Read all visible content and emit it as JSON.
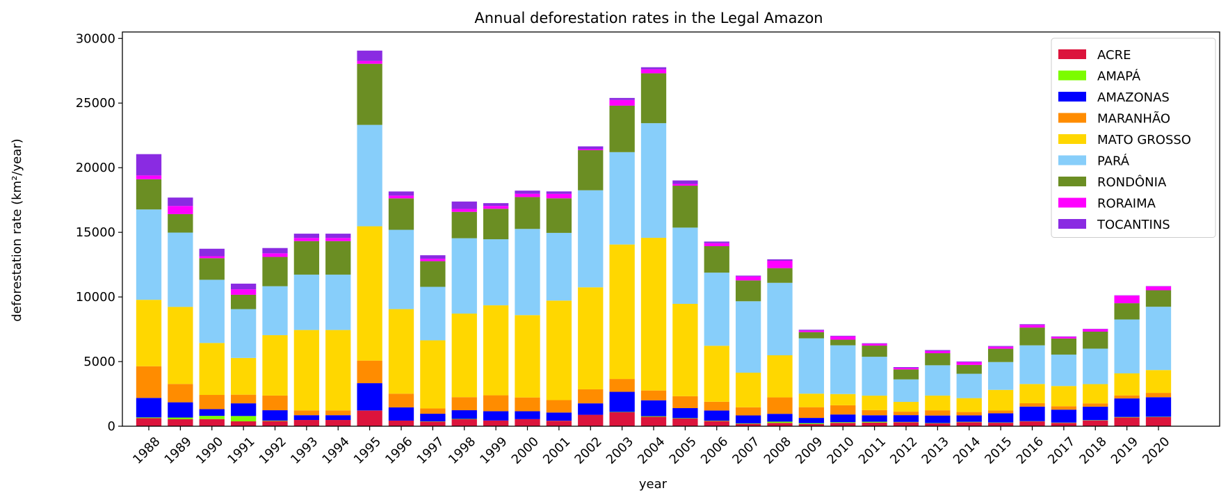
{
  "chart_data": {
    "type": "bar",
    "stacked": true,
    "title": "Annual deforestation rates in the Legal Amazon",
    "xlabel": "year",
    "ylabel": "deforestation rate (km²/year)",
    "ylim": [
      0,
      30500
    ],
    "yticks": [
      0,
      5000,
      10000,
      15000,
      20000,
      25000,
      30000
    ],
    "legend_position": "top-right",
    "grid": false,
    "categories": [
      "1988",
      "1989",
      "1990",
      "1991",
      "1992",
      "1993",
      "1994",
      "1995",
      "1996",
      "1997",
      "1998",
      "1999",
      "2000",
      "2001",
      "2002",
      "2003",
      "2004",
      "2005",
      "2006",
      "2007",
      "2008",
      "2009",
      "2010",
      "2011",
      "2012",
      "2013",
      "2014",
      "2015",
      "2016",
      "2017",
      "2018",
      "2019",
      "2020"
    ],
    "series": [
      {
        "name": "ACRE",
        "color": "#dc143c",
        "values": [
          620,
          540,
          550,
          380,
          400,
          482,
          482,
          1208,
          433,
          358,
          536,
          441,
          547,
          419,
          883,
          1078,
          728,
          592,
          398,
          184,
          254,
          167,
          259,
          280,
          305,
          221,
          309,
          264,
          372,
          257,
          444,
          682,
          706
        ]
      },
      {
        "name": "AMAPÁ",
        "color": "#7cfc00",
        "values": [
          60,
          130,
          250,
          410,
          36,
          0,
          0,
          9,
          0,
          18,
          30,
          0,
          0,
          7,
          0,
          25,
          46,
          33,
          30,
          39,
          100,
          70,
          53,
          66,
          27,
          23,
          31,
          25,
          17,
          24,
          24,
          32,
          24
        ]
      },
      {
        "name": "AMAZONAS",
        "color": "#0000ff",
        "values": [
          1510,
          1180,
          520,
          980,
          799,
          370,
          370,
          2114,
          1023,
          589,
          670,
          720,
          612,
          634,
          885,
          1558,
          1232,
          775,
          788,
          610,
          604,
          405,
          595,
          502,
          523,
          583,
          500,
          712,
          1129,
          1001,
          1045,
          1434,
          1512
        ]
      },
      {
        "name": "MARANHÃO",
        "color": "#ff8c00",
        "values": [
          2450,
          1420,
          1100,
          670,
          1135,
          372,
          372,
          1745,
          1061,
          409,
          1012,
          1230,
          1065,
          958,
          1085,
          993,
          755,
          922,
          674,
          631,
          1271,
          828,
          712,
          396,
          269,
          403,
          257,
          209,
          258,
          265,
          253,
          237,
          336
        ]
      },
      {
        "name": "MATO GROSSO",
        "color": "#ffd700",
        "values": [
          5140,
          5960,
          4020,
          2840,
          4674,
          6220,
          6220,
          10391,
          6543,
          5271,
          6466,
          6963,
          6369,
          7703,
          7892,
          10405,
          11814,
          7145,
          4333,
          2678,
          3258,
          1049,
          871,
          1120,
          757,
          1139,
          1075,
          1601,
          1489,
          1561,
          1490,
          1702,
          1767
        ]
      },
      {
        "name": "PARÁ",
        "color": "#87cefa",
        "values": [
          6990,
          5750,
          4890,
          3780,
          3787,
          4284,
          4284,
          7845,
          6135,
          4139,
          5829,
          5111,
          6671,
          5237,
          7510,
          7145,
          8870,
          5899,
          5659,
          5526,
          5607,
          4281,
          3770,
          3008,
          1741,
          2346,
          1887,
          2153,
          2992,
          2433,
          2744,
          4172,
          4899
        ]
      },
      {
        "name": "RONDÔNIA",
        "color": "#6b8e23",
        "values": [
          2340,
          1430,
          1670,
          1110,
          2265,
          2595,
          2595,
          4730,
          2432,
          1986,
          2041,
          2358,
          2465,
          2673,
          3099,
          3597,
          3858,
          3244,
          2049,
          1611,
          1136,
          482,
          435,
          865,
          773,
          932,
          684,
          1030,
          1376,
          1243,
          1316,
          1257,
          1273
        ]
      },
      {
        "name": "RORAIMA",
        "color": "#ff00ff",
        "values": [
          290,
          630,
          150,
          420,
          281,
          240,
          240,
          220,
          214,
          184,
          223,
          220,
          253,
          345,
          84,
          439,
          311,
          133,
          231,
          309,
          574,
          121,
          256,
          141,
          124,
          170,
          219,
          156,
          202,
          132,
          195,
          590,
          297
        ]
      },
      {
        "name": "TOCANTINS",
        "color": "#8a2be2",
        "values": [
          1650,
          650,
          580,
          440,
          409,
          333,
          333,
          797,
          320,
          273,
          576,
          216,
          244,
          189,
          212,
          156,
          158,
          271,
          124,
          63,
          107,
          61,
          49,
          40,
          52,
          74,
          50,
          57,
          58,
          31,
          25,
          23,
          25
        ]
      }
    ]
  }
}
